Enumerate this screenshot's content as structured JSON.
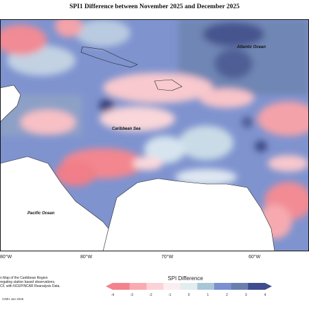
{
  "title": "SPI1 Difference between November 2025 and December 2025",
  "map_labels": {
    "atlantic": "Atlantic Ocean",
    "caribbean": "Caribbean Sea",
    "pacific": "Pacific Ocean"
  },
  "lon_labels": [
    "80°W",
    "80°W",
    "70°W",
    "60°W"
  ],
  "credit": {
    "line1": "n Map of the Caribbean Region",
    "line2": "regating station based observations,",
    "line3": "CF, with NCEP/NCAR Reanalysis Data.",
    "small": "CIMH Jan 2026"
  },
  "legend": {
    "title": "SPI Difference",
    "ticks": [
      "-4",
      "-3",
      "-2",
      "-1",
      "0",
      "1",
      "2",
      "3",
      "4"
    ],
    "colors": [
      "#f4828c",
      "#f9abb1",
      "#fbd2d5",
      "#fbeef0",
      "#e2edf0",
      "#a9c6d7",
      "#7c8fd1",
      "#6a7fb0",
      "#3f4c8f"
    ]
  }
}
